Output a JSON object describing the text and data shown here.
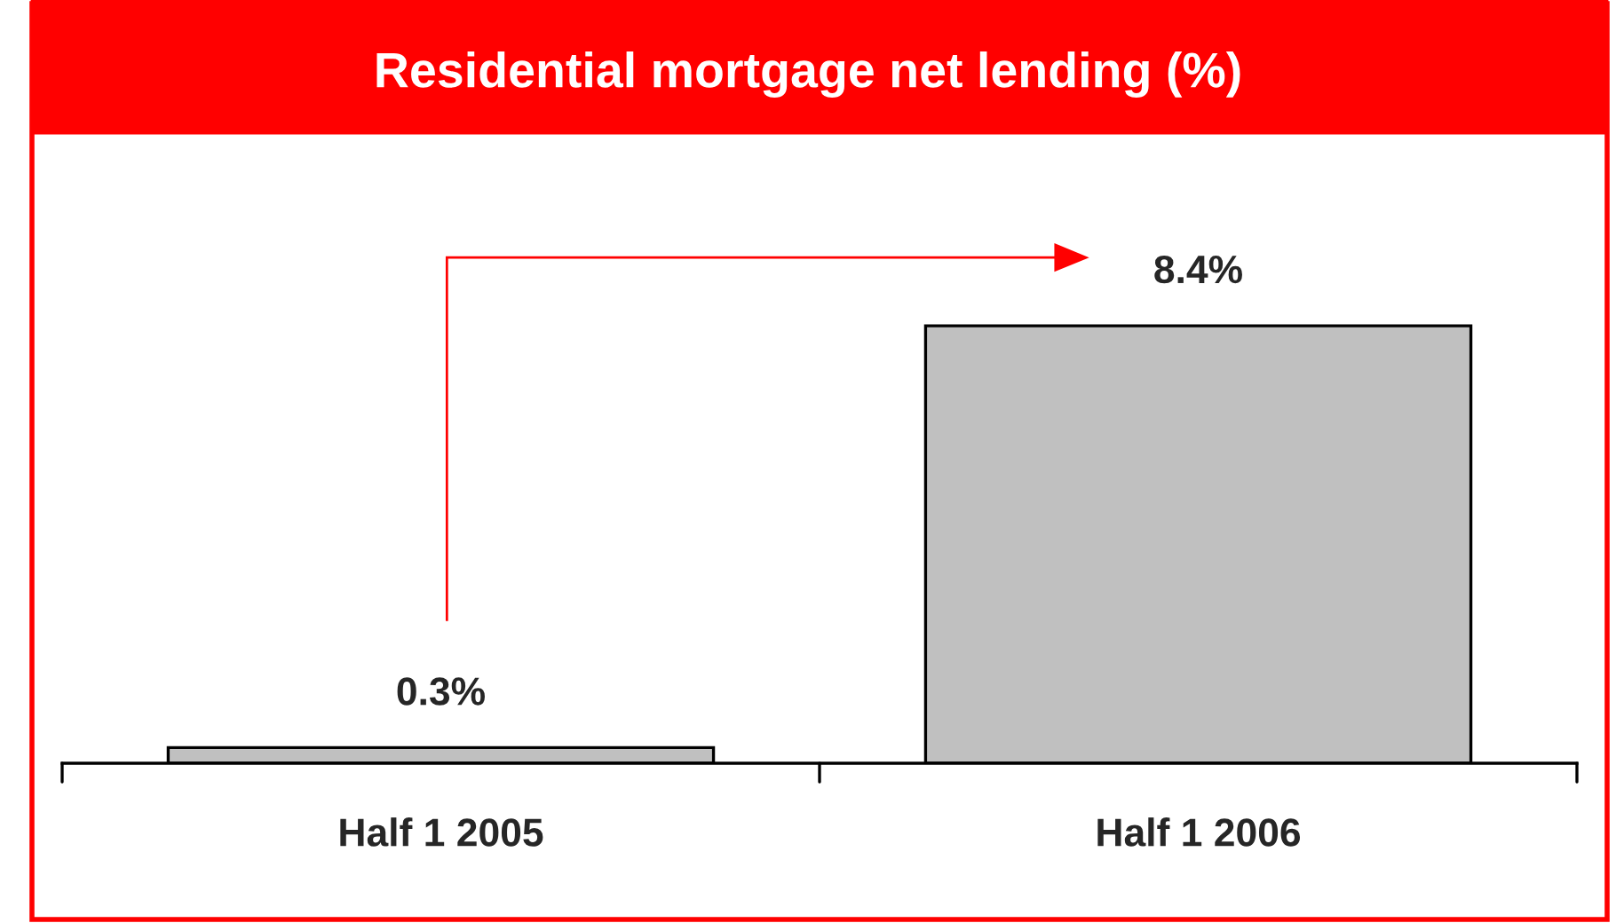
{
  "chart_data": {
    "type": "bar",
    "title": "Residential mortgage net lending (%)",
    "categories": [
      "Half 1 2005",
      "Half 1 2006"
    ],
    "values": [
      0.3,
      8.4
    ],
    "color": "#c0c0c0",
    "value_labels": [
      "0.3%",
      "8.4%"
    ],
    "grid": false,
    "legend": false
  }
}
